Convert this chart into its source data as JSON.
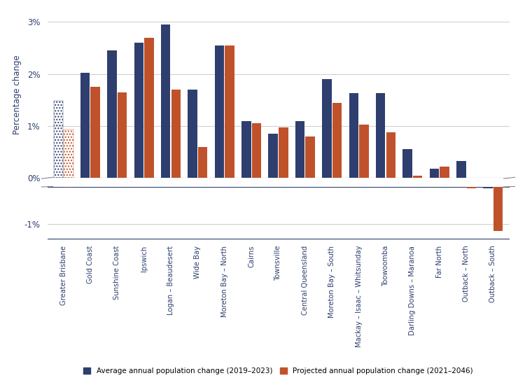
{
  "categories": [
    "Greater Brisbane",
    "Gold Coast",
    "Sunshine Coast",
    "Ipswich",
    "Logan – Beaudesert",
    "Wide Bay",
    "Moreton Bay – North",
    "Cairns",
    "Townsville",
    "Central Queensland",
    "Moreton Bay – South",
    "Mackay – Isaac – Whitsunday",
    "Toowoomba",
    "Darling Downs – Maranoa",
    "Far North",
    "Outback – North",
    "Outback – South"
  ],
  "avg_annual": [
    1.48,
    2.02,
    2.45,
    2.6,
    2.95,
    1.7,
    2.55,
    1.1,
    0.85,
    1.1,
    1.9,
    1.63,
    1.63,
    0.55,
    0.18,
    0.32,
    -0.05
  ],
  "proj_annual": [
    0.93,
    1.75,
    1.65,
    2.7,
    1.7,
    0.6,
    2.55,
    1.05,
    0.97,
    0.8,
    1.45,
    1.02,
    0.88,
    0.05,
    0.22,
    -0.05,
    -1.2
  ],
  "color_avg": "#2E3F6F",
  "color_proj": "#C0522B",
  "ylabel": "Percentage change",
  "legend_avg": "Average annual population change (2019–2023)",
  "legend_proj": "Projected annual population change (2021–2046)",
  "ylim": [
    -1.4,
    3.2
  ],
  "background_color": "#ffffff",
  "grid_color": "#cccccc",
  "bar_width": 0.35
}
